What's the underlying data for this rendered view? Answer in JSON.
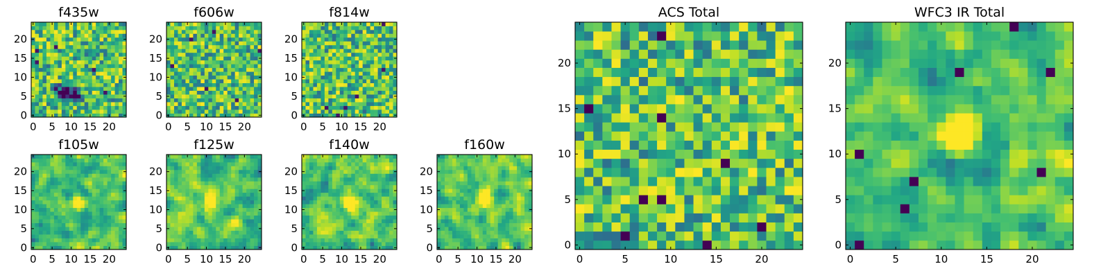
{
  "figure": {
    "colormap": "viridis",
    "colors": {
      "low": "#440154",
      "mid": "#21918c",
      "high": "#fde725",
      "frame": "#000000",
      "background": "#ffffff"
    }
  },
  "chart_data": [
    {
      "id": "f435w",
      "type": "heatmap",
      "title": "f435w",
      "xlim": [
        -0.5,
        24.5
      ],
      "ylim": [
        -0.5,
        24.5
      ],
      "xticks": [
        0,
        5,
        10,
        15,
        20
      ],
      "yticks": [
        0,
        5,
        10,
        15,
        20
      ],
      "grid_size": [
        25,
        25
      ],
      "seed": 11,
      "blobs": [
        [
          8,
          6,
          -0.9
        ],
        [
          11,
          5,
          -0.7
        ]
      ]
    },
    {
      "id": "f606w",
      "type": "heatmap",
      "title": "f606w",
      "xlim": [
        -0.5,
        24.5
      ],
      "ylim": [
        -0.5,
        24.5
      ],
      "xticks": [
        0,
        5,
        10,
        15,
        20
      ],
      "yticks": [
        0,
        5,
        10,
        15,
        20
      ],
      "grid_size": [
        25,
        25
      ],
      "seed": 23,
      "blobs": []
    },
    {
      "id": "f814w",
      "type": "heatmap",
      "title": "f814w",
      "xlim": [
        -0.5,
        24.5
      ],
      "ylim": [
        -0.5,
        24.5
      ],
      "xticks": [
        0,
        5,
        10,
        15,
        20
      ],
      "yticks": [
        0,
        5,
        10,
        15,
        20
      ],
      "grid_size": [
        25,
        25
      ],
      "seed": 37,
      "blobs": []
    },
    {
      "id": "f105w",
      "type": "heatmap",
      "title": "f105w",
      "xlim": [
        -0.5,
        24.5
      ],
      "ylim": [
        -0.5,
        24.5
      ],
      "xticks": [
        0,
        5,
        10,
        15,
        20
      ],
      "yticks": [
        0,
        5,
        10,
        15,
        20
      ],
      "grid_size": [
        25,
        25
      ],
      "seed": 41,
      "blobs": [
        [
          12,
          12,
          0.4
        ]
      ]
    },
    {
      "id": "f125w",
      "type": "heatmap",
      "title": "f125w",
      "xlim": [
        -0.5,
        24.5
      ],
      "ylim": [
        -0.5,
        24.5
      ],
      "xticks": [
        0,
        5,
        10,
        15,
        20
      ],
      "yticks": [
        0,
        5,
        10,
        15,
        20
      ],
      "grid_size": [
        25,
        25
      ],
      "seed": 53,
      "blobs": [
        [
          11,
          12,
          0.5
        ]
      ]
    },
    {
      "id": "f140w",
      "type": "heatmap",
      "title": "f140w",
      "xlim": [
        -0.5,
        24.5
      ],
      "ylim": [
        -0.5,
        24.5
      ],
      "xticks": [
        0,
        5,
        10,
        15,
        20
      ],
      "yticks": [
        0,
        5,
        10,
        15,
        20
      ],
      "grid_size": [
        25,
        25
      ],
      "seed": 67,
      "blobs": [
        [
          12,
          12,
          0.6
        ]
      ]
    },
    {
      "id": "f160w",
      "type": "heatmap",
      "title": "f160w",
      "xlim": [
        -0.5,
        24.5
      ],
      "ylim": [
        -0.5,
        24.5
      ],
      "xticks": [
        0,
        5,
        10,
        15,
        20
      ],
      "yticks": [
        0,
        5,
        10,
        15,
        20
      ],
      "grid_size": [
        25,
        25
      ],
      "seed": 79,
      "blobs": [
        [
          12,
          13,
          0.9
        ]
      ]
    },
    {
      "id": "acs-total",
      "type": "heatmap",
      "title": "ACS Total",
      "xlim": [
        -0.5,
        24.5
      ],
      "ylim": [
        -0.5,
        24.5
      ],
      "xticks": [
        0,
        5,
        10,
        15,
        20
      ],
      "yticks": [
        0,
        5,
        10,
        15,
        20
      ],
      "grid_size": [
        25,
        25
      ],
      "seed": 97,
      "blobs": [],
      "dark_pixels": [
        [
          9,
          23
        ],
        [
          1,
          15
        ],
        [
          9,
          14
        ],
        [
          16,
          9
        ],
        [
          14,
          0
        ],
        [
          7,
          5
        ],
        [
          9,
          5
        ],
        [
          20,
          2
        ],
        [
          5,
          1
        ]
      ]
    },
    {
      "id": "wfc3-ir-total",
      "type": "heatmap",
      "title": "WFC3 IR Total",
      "xlim": [
        -0.5,
        24.5
      ],
      "ylim": [
        -0.5,
        24.5
      ],
      "xticks": [
        0,
        5,
        10,
        15,
        20
      ],
      "yticks": [
        0,
        5,
        10,
        15,
        20
      ],
      "grid_size": [
        25,
        25
      ],
      "seed": 109,
      "blobs": [
        [
          12,
          12,
          1.3
        ]
      ],
      "dark_pixels": [
        [
          18,
          24
        ],
        [
          12,
          19
        ],
        [
          22,
          19
        ],
        [
          1,
          10
        ],
        [
          7,
          7
        ],
        [
          21,
          8
        ],
        [
          6,
          4
        ],
        [
          1,
          0
        ]
      ]
    }
  ]
}
